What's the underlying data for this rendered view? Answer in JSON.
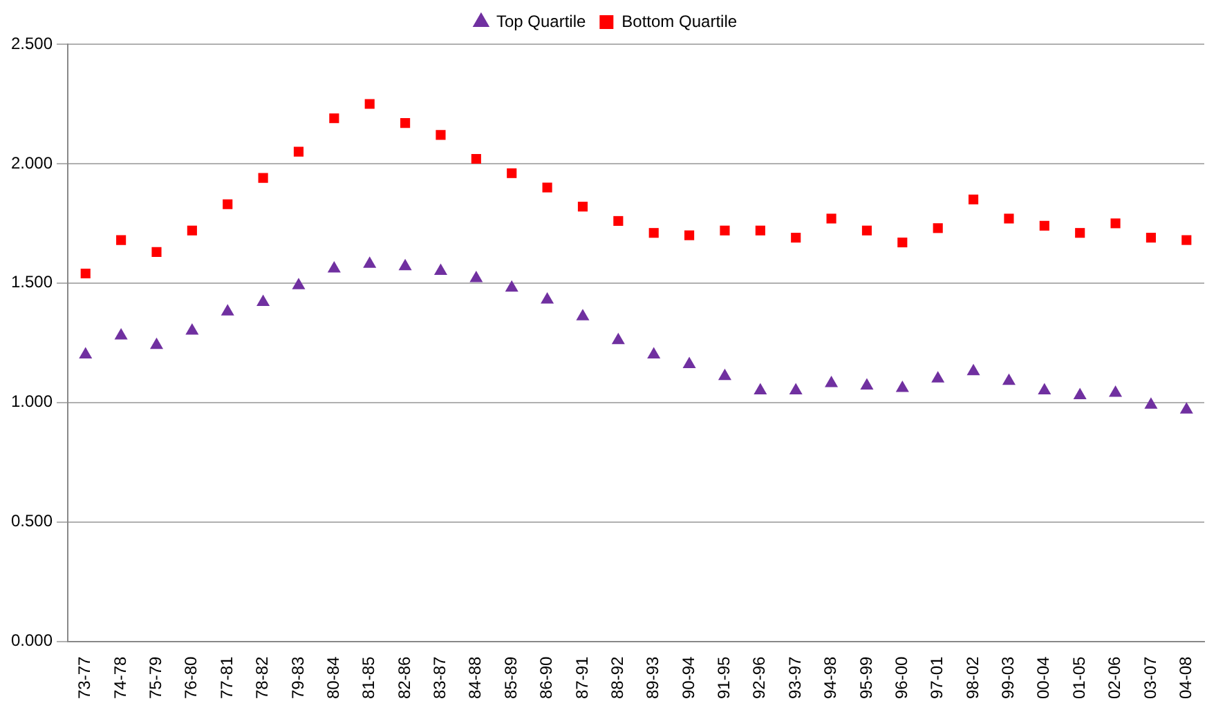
{
  "chart_data": {
    "type": "scatter",
    "categories": [
      "73-77",
      "74-78",
      "75-79",
      "76-80",
      "77-81",
      "78-82",
      "79-83",
      "80-84",
      "81-85",
      "82-86",
      "83-87",
      "84-88",
      "85-89",
      "86-90",
      "87-91",
      "88-92",
      "89-93",
      "90-94",
      "91-95",
      "92-96",
      "93-97",
      "94-98",
      "95-99",
      "96-00",
      "97-01",
      "98-02",
      "99-03",
      "00-04",
      "01-05",
      "02-06",
      "03-07",
      "04-08"
    ],
    "series": [
      {
        "name": "Top Quartile",
        "color": "#7030a0",
        "marker": "triangle",
        "values": [
          1.2,
          1.28,
          1.24,
          1.3,
          1.38,
          1.42,
          1.49,
          1.56,
          1.58,
          1.57,
          1.55,
          1.52,
          1.48,
          1.43,
          1.36,
          1.26,
          1.2,
          1.16,
          1.11,
          1.05,
          1.05,
          1.08,
          1.07,
          1.06,
          1.1,
          1.13,
          1.09,
          1.05,
          1.03,
          1.04,
          0.99,
          0.97
        ]
      },
      {
        "name": "Bottom Quartile",
        "color": "#ff0000",
        "marker": "square",
        "values": [
          1.54,
          1.68,
          1.63,
          1.72,
          1.83,
          1.94,
          2.05,
          2.19,
          2.25,
          2.17,
          2.12,
          2.02,
          1.96,
          1.9,
          1.82,
          1.76,
          1.71,
          1.7,
          1.72,
          1.72,
          1.69,
          1.77,
          1.72,
          1.67,
          1.73,
          1.85,
          1.77,
          1.74,
          1.71,
          1.75,
          1.69,
          1.68
        ]
      }
    ],
    "ylim": [
      0,
      2.5
    ],
    "yticks": [
      {
        "value": 0,
        "label": "0.000"
      },
      {
        "value": 0.5,
        "label": "0.500"
      },
      {
        "value": 1,
        "label": "1.000"
      },
      {
        "value": 1.5,
        "label": "1.500"
      },
      {
        "value": 2,
        "label": "2.000"
      },
      {
        "value": 2.5,
        "label": "2.500"
      }
    ],
    "grid": "y",
    "legend": "top"
  }
}
